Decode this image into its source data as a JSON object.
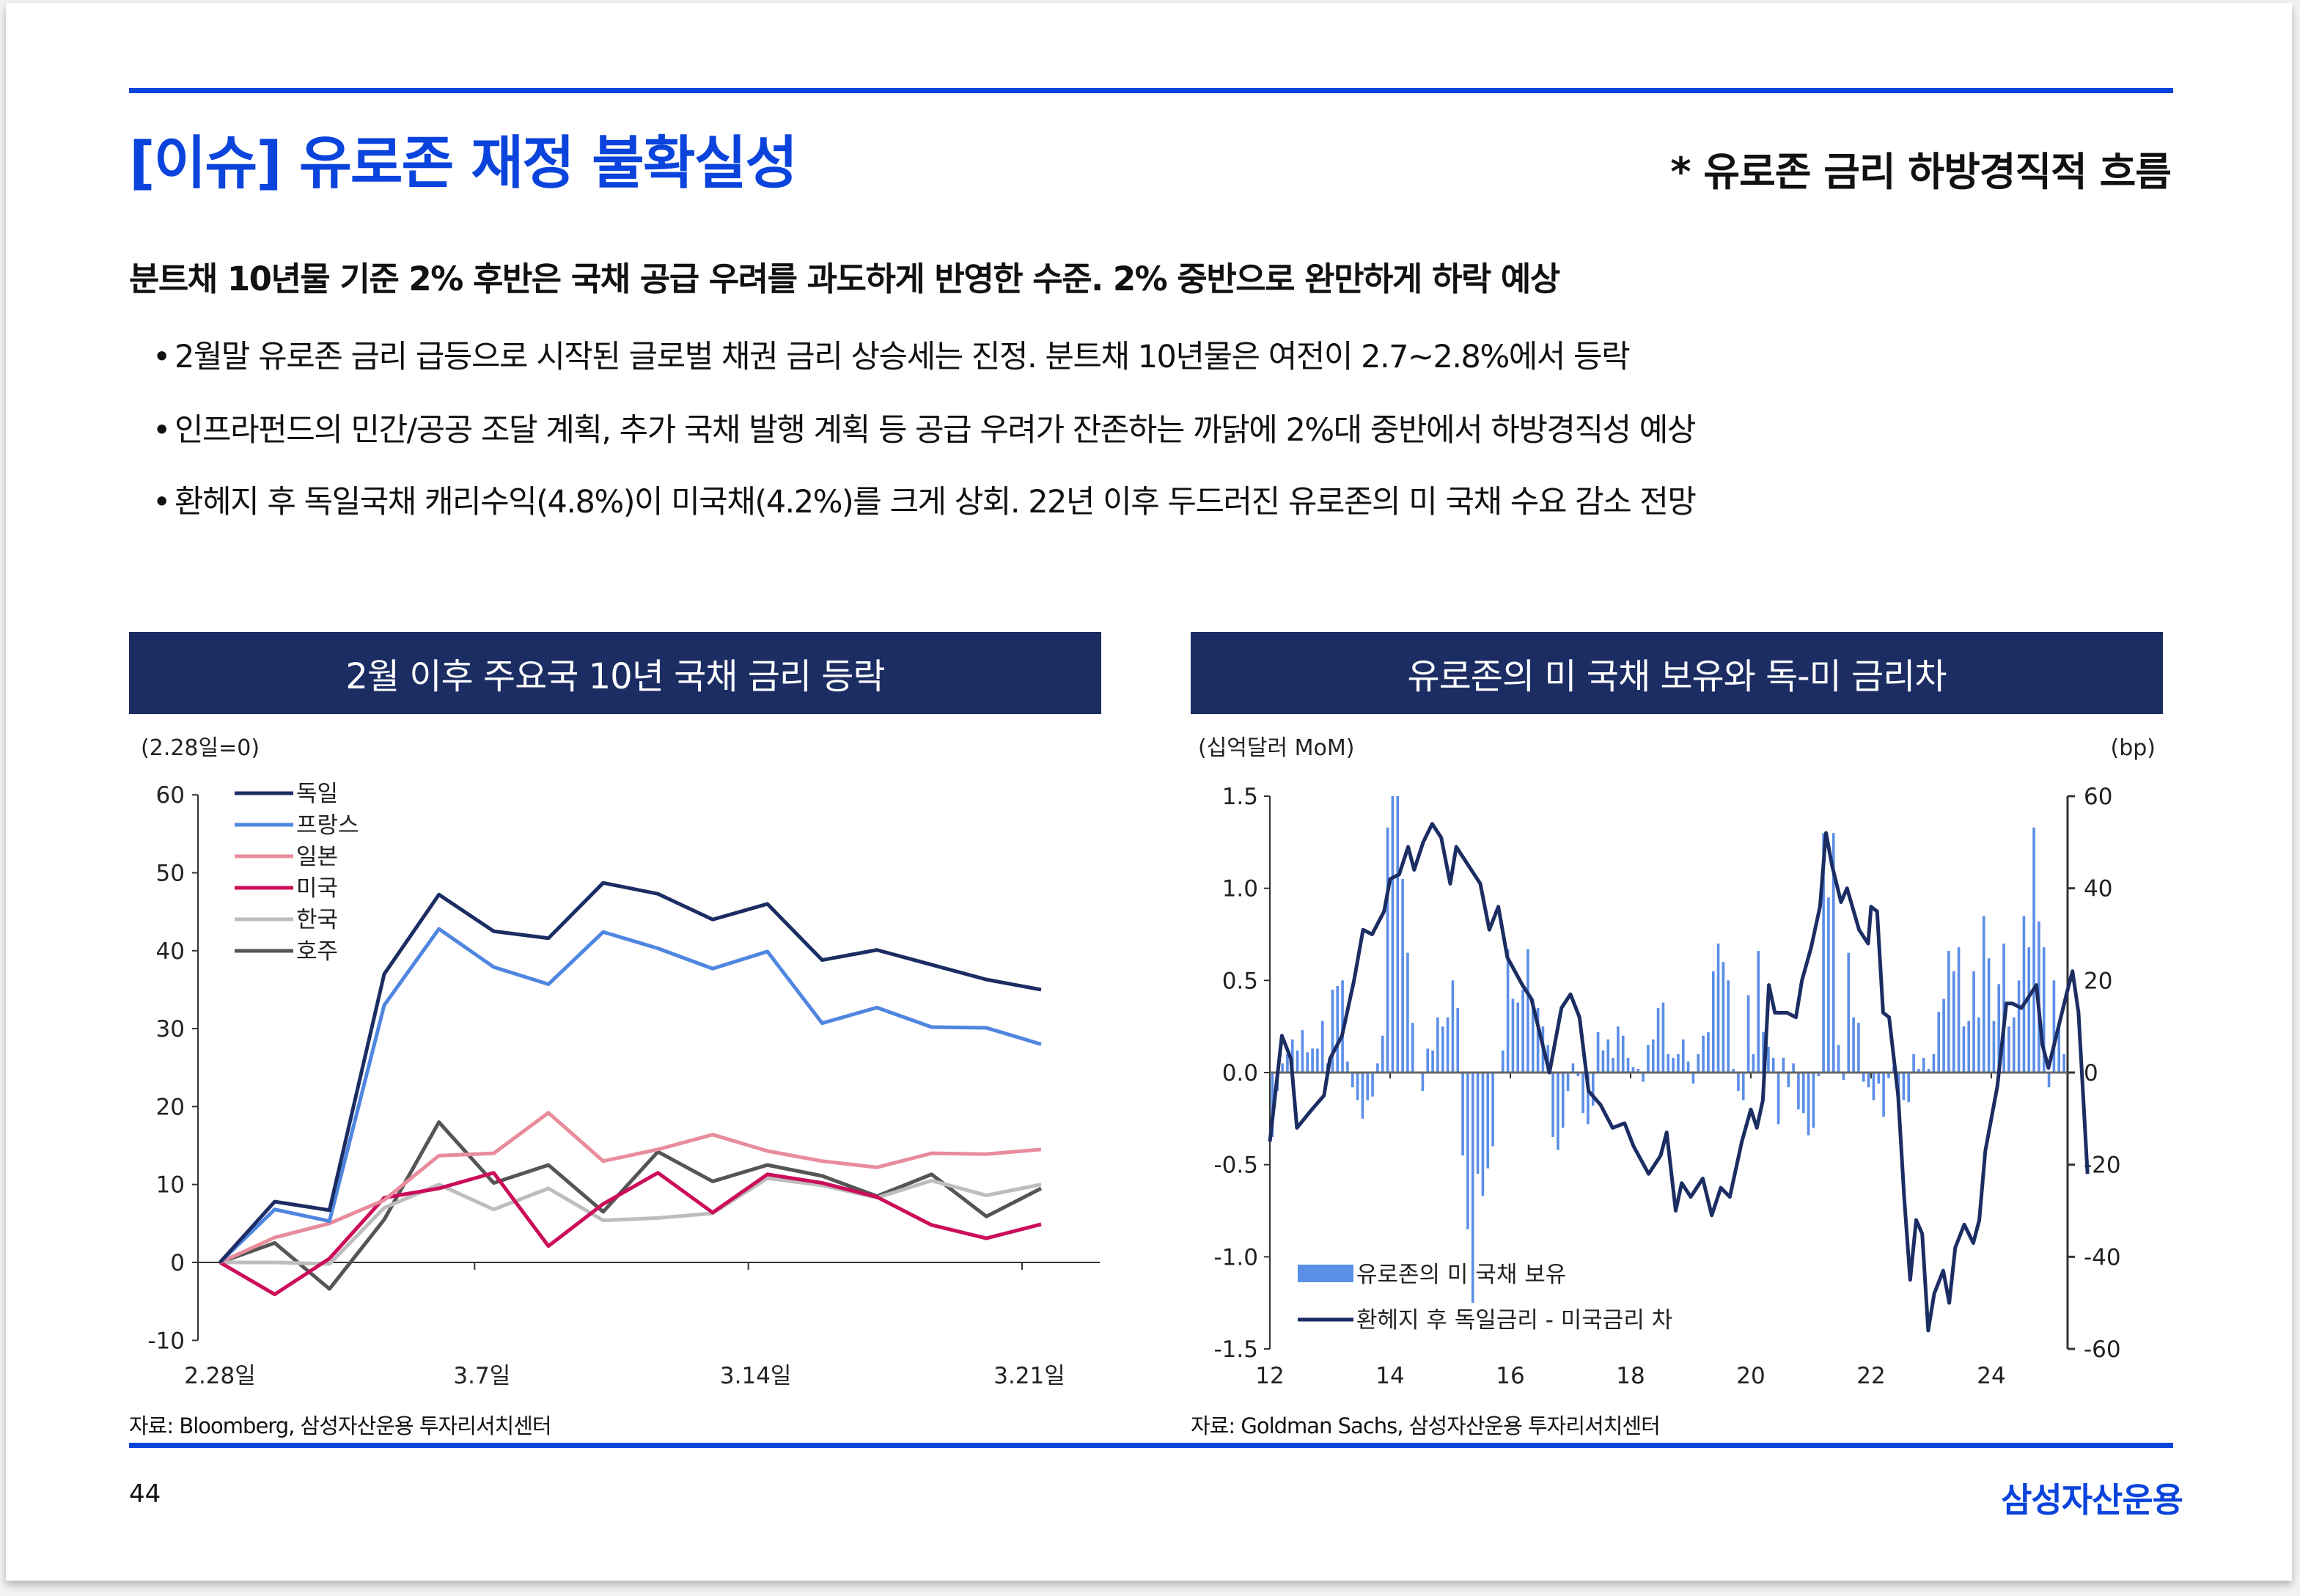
{
  "header": {
    "title": "[이슈] 유로존 재정 불확실성",
    "title_right": "* 유로존 금리 하방경직적 흐름"
  },
  "summary": "분트채 10년물 기준 2% 후반은 국채 공급 우려를 과도하게 반영한 수준. 2% 중반으로 완만하게 하락 예상",
  "bullets": [
    "2월말 유로존 금리 급등으로 시작된 글로벌 채권 금리 상승세는 진정. 분트채 10년물은 여전이 2.7~2.8%에서 등락",
    "인프라펀드의 민간/공공 조달 계획, 추가 국채 발행 계획 등 공급 우려가 잔존하는 까닭에 2%대 중반에서 하방경직성 예상",
    "환헤지 후 독일국채 캐리수익(4.8%)이 미국채(4.2%)를 크게 상회. 22년 이후 두드러진 유로존의 미 국채 수요 감소 전망"
  ],
  "bullet_symbol": "•",
  "sources": [
    "자료: Bloomberg, 삼성자산운용 투자리서치센터",
    "자료: Goldman Sachs, 삼성자산운용 투자리서치센터"
  ],
  "footer": {
    "page": "44",
    "logo": "삼성자산운용"
  },
  "colors": {
    "accent": "#0a44dc",
    "header_bg": "#1b2d63"
  },
  "chart_data": [
    {
      "type": "line",
      "title": "2월 이후 주요국 10년 국채 금리 등락",
      "unit_label": "(2.28일=0)",
      "ylim": [
        -10,
        60
      ],
      "yticks": [
        "60",
        "50",
        "40",
        "30",
        "20",
        "10",
        "0",
        "-10"
      ],
      "ytick_values": [
        60,
        50,
        40,
        30,
        20,
        10,
        0,
        -10
      ],
      "xtick_labels": [
        "2.28일",
        "3.7일",
        "3.14일",
        "3.21일"
      ],
      "xtick_index": [
        0,
        5,
        10,
        15
      ],
      "x": [
        "2.28",
        "3.3",
        "3.4",
        "3.5",
        "3.6",
        "3.7",
        "3.10",
        "3.11",
        "3.12",
        "3.13",
        "3.14",
        "3.17",
        "3.18",
        "3.19",
        "3.20",
        "3.21"
      ],
      "legend_position": "top-left",
      "series": [
        {
          "name": "독일",
          "color": "#1b2d63",
          "values": [
            0,
            7.8,
            6.7,
            37,
            47.2,
            42.5,
            41.6,
            48.7,
            47.3,
            44,
            46,
            38.8,
            40.1,
            38.2,
            36.3,
            35
          ]
        },
        {
          "name": "프랑스",
          "color": "#4f86e0",
          "values": [
            0,
            6.8,
            5.3,
            33,
            42.8,
            37.9,
            35.7,
            42.4,
            40.3,
            37.7,
            39.9,
            30.7,
            32.7,
            30.2,
            30.1,
            28
          ]
        },
        {
          "name": "일본",
          "color": "#e88c9c",
          "values": [
            0,
            3.2,
            5,
            8,
            13.7,
            14,
            19.2,
            13,
            14.5,
            16.4,
            14.3,
            13,
            12.2,
            14,
            13.9,
            14.5
          ]
        },
        {
          "name": "미국",
          "color": "#cc0d5a",
          "values": [
            0,
            -4.1,
            0.5,
            8.3,
            9.5,
            11.5,
            2.1,
            7.5,
            11.5,
            6.4,
            11.3,
            10.2,
            8.4,
            4.8,
            3.1,
            4.9
          ]
        },
        {
          "name": "한국",
          "color": "#bdbdbd",
          "values": [
            0,
            0,
            -0.2,
            7,
            10,
            6.8,
            9.5,
            5.4,
            5.7,
            6.3,
            10.8,
            9.9,
            8.3,
            10.5,
            8.6,
            10
          ]
        },
        {
          "name": "호주",
          "color": "#555555",
          "values": [
            0,
            2.5,
            -3.4,
            5.5,
            18,
            10.2,
            12.5,
            6.5,
            14.2,
            10.4,
            12.5,
            11.1,
            8.5,
            11.3,
            5.9,
            9.5
          ]
        }
      ]
    },
    {
      "type": "bar+line",
      "title": "유로존의 미 국채 보유와 독-미 금리차",
      "left_unit_label": "(십억달러 MoM)",
      "right_unit_label": "(bp)",
      "ylim_left": [
        -1.5,
        1.5
      ],
      "ylim_right": [
        -60,
        60
      ],
      "yticks_left": [
        "1.5",
        "1.0",
        "0.5",
        "0.0",
        "-0.5",
        "-1.0",
        "-1.5"
      ],
      "yticks_left_values": [
        1.5,
        1.0,
        0.5,
        0,
        -0.5,
        -1.0,
        -1.5
      ],
      "yticks_right": [
        "60",
        "40",
        "20",
        "0",
        "-20",
        "-40",
        "-60"
      ],
      "yticks_right_values": [
        60,
        40,
        20,
        0,
        -20,
        -40,
        -60
      ],
      "xtick_labels": [
        "12",
        "14",
        "16",
        "18",
        "20",
        "22",
        "24"
      ],
      "xtick_values": [
        2012,
        2014,
        2016,
        2018,
        2020,
        2022,
        2024
      ],
      "xlim": [
        2012,
        2026
      ],
      "legend_position": "bottom-left",
      "bar_series": {
        "name": "유로존의 미 국채 보유",
        "color": "#5b8ee6",
        "start": 2012,
        "frequency": "monthly",
        "values": [
          -0.35,
          -0.1,
          0.05,
          0.1,
          0.18,
          0.12,
          0.23,
          0.11,
          0.13,
          0.13,
          0.28,
          0.05,
          0.45,
          0.47,
          0.5,
          0.06,
          -0.08,
          -0.15,
          -0.25,
          -0.15,
          -0.13,
          0.05,
          0.2,
          1.33,
          1.5,
          1.5,
          1.05,
          0.65,
          0.27,
          0,
          -0.1,
          0.13,
          0.12,
          0.3,
          0.25,
          0.3,
          0.5,
          0.35,
          -0.45,
          -0.85,
          -1.25,
          -0.55,
          -0.67,
          -0.52,
          -0.4,
          0,
          0.12,
          0.67,
          0.4,
          0.38,
          0.45,
          0.67,
          0.4,
          0.35,
          0.25,
          0.15,
          -0.35,
          -0.42,
          -0.3,
          -0.1,
          0.05,
          -0.02,
          -0.22,
          -0.28,
          -0.18,
          0.22,
          0.12,
          0.18,
          0.08,
          0.25,
          0.2,
          0.08,
          0.03,
          0.02,
          -0.05,
          0.15,
          0.18,
          0.35,
          0.38,
          0.1,
          0.08,
          0.1,
          0.18,
          0.06,
          -0.06,
          0.1,
          0.2,
          0.22,
          0.55,
          0.7,
          0.6,
          0.5,
          0.02,
          -0.1,
          -0.15,
          0.42,
          0.1,
          0.66,
          0.22,
          0.14,
          0.08,
          -0.28,
          0.08,
          -0.08,
          0.05,
          -0.2,
          -0.22,
          -0.34,
          -0.3,
          -0.02,
          1.3,
          0.95,
          1.3,
          0.15,
          -0.04,
          0.65,
          0.3,
          0.27,
          -0.05,
          -0.08,
          -0.15,
          -0.06,
          -0.24,
          -0.03,
          0.03,
          -0.12,
          -0.15,
          -0.16,
          0.1,
          0.02,
          0.08,
          0.02,
          0.1,
          0.33,
          0.4,
          0.66,
          0.55,
          0.68,
          0.25,
          0.28,
          0.55,
          0.3,
          0.85,
          0.62,
          0.28,
          0.48,
          0.7,
          0.25,
          0.3,
          0.5,
          0.85,
          0.68,
          1.33,
          0.82,
          0.68,
          -0.08,
          0.5,
          0.25,
          0.1
        ]
      },
      "line_series": {
        "name": "환헤지 후 독일금리 - 미국금리 차",
        "color": "#1b2d63",
        "x": [
          2012.0,
          2012.2,
          2012.35,
          2012.45,
          2012.7,
          2012.9,
          2013.0,
          2013.2,
          2013.4,
          2013.55,
          2013.7,
          2013.9,
          2014.0,
          2014.15,
          2014.3,
          2014.4,
          2014.55,
          2014.7,
          2014.85,
          2015.0,
          2015.1,
          2015.3,
          2015.5,
          2015.65,
          2015.8,
          2015.95,
          2016.2,
          2016.35,
          2016.5,
          2016.65,
          2016.85,
          2017.0,
          2017.15,
          2017.3,
          2017.5,
          2017.7,
          2017.9,
          2018.05,
          2018.3,
          2018.5,
          2018.6,
          2018.75,
          2018.85,
          2019.0,
          2019.2,
          2019.35,
          2019.5,
          2019.65,
          2019.85,
          2020.0,
          2020.1,
          2020.2,
          2020.3,
          2020.4,
          2020.6,
          2020.75,
          2020.85,
          2021.0,
          2021.15,
          2021.25,
          2021.35,
          2021.5,
          2021.6,
          2021.8,
          2021.95,
          2022.0,
          2022.1,
          2022.2,
          2022.3,
          2022.45,
          2022.55,
          2022.65,
          2022.75,
          2022.85,
          2022.95,
          2023.05,
          2023.2,
          2023.3,
          2023.4,
          2023.55,
          2023.7,
          2023.8,
          2023.9,
          2024.1,
          2024.25,
          2024.35,
          2024.5,
          2024.65,
          2024.75,
          2024.85,
          2024.95,
          2025.1,
          2025.25,
          2025.35,
          2025.45,
          2025.6
        ],
        "values": [
          -15,
          8,
          3,
          -12,
          -8,
          -5,
          3,
          8,
          20,
          31,
          30,
          35,
          42,
          43,
          49,
          44,
          50,
          54,
          51,
          41,
          49,
          45,
          41,
          31,
          36,
          25,
          19,
          16,
          8,
          0,
          14,
          17,
          12,
          -4,
          -7,
          -12,
          -11,
          -16,
          -22,
          -18,
          -13,
          -30,
          -24,
          -27,
          -23,
          -31,
          -25,
          -27,
          -15,
          -8,
          -12,
          -6,
          19,
          13,
          13,
          12,
          20,
          27,
          36,
          52,
          45,
          37,
          40,
          31,
          28,
          36,
          35,
          13,
          12,
          -5,
          -27,
          -45,
          -32,
          -35,
          -56,
          -48,
          -43,
          -50,
          -38,
          -33,
          -37,
          -32,
          -17,
          -3,
          15,
          15,
          14,
          17,
          19,
          6,
          1,
          9,
          17,
          22,
          13,
          -22
        ]
      }
    }
  ]
}
